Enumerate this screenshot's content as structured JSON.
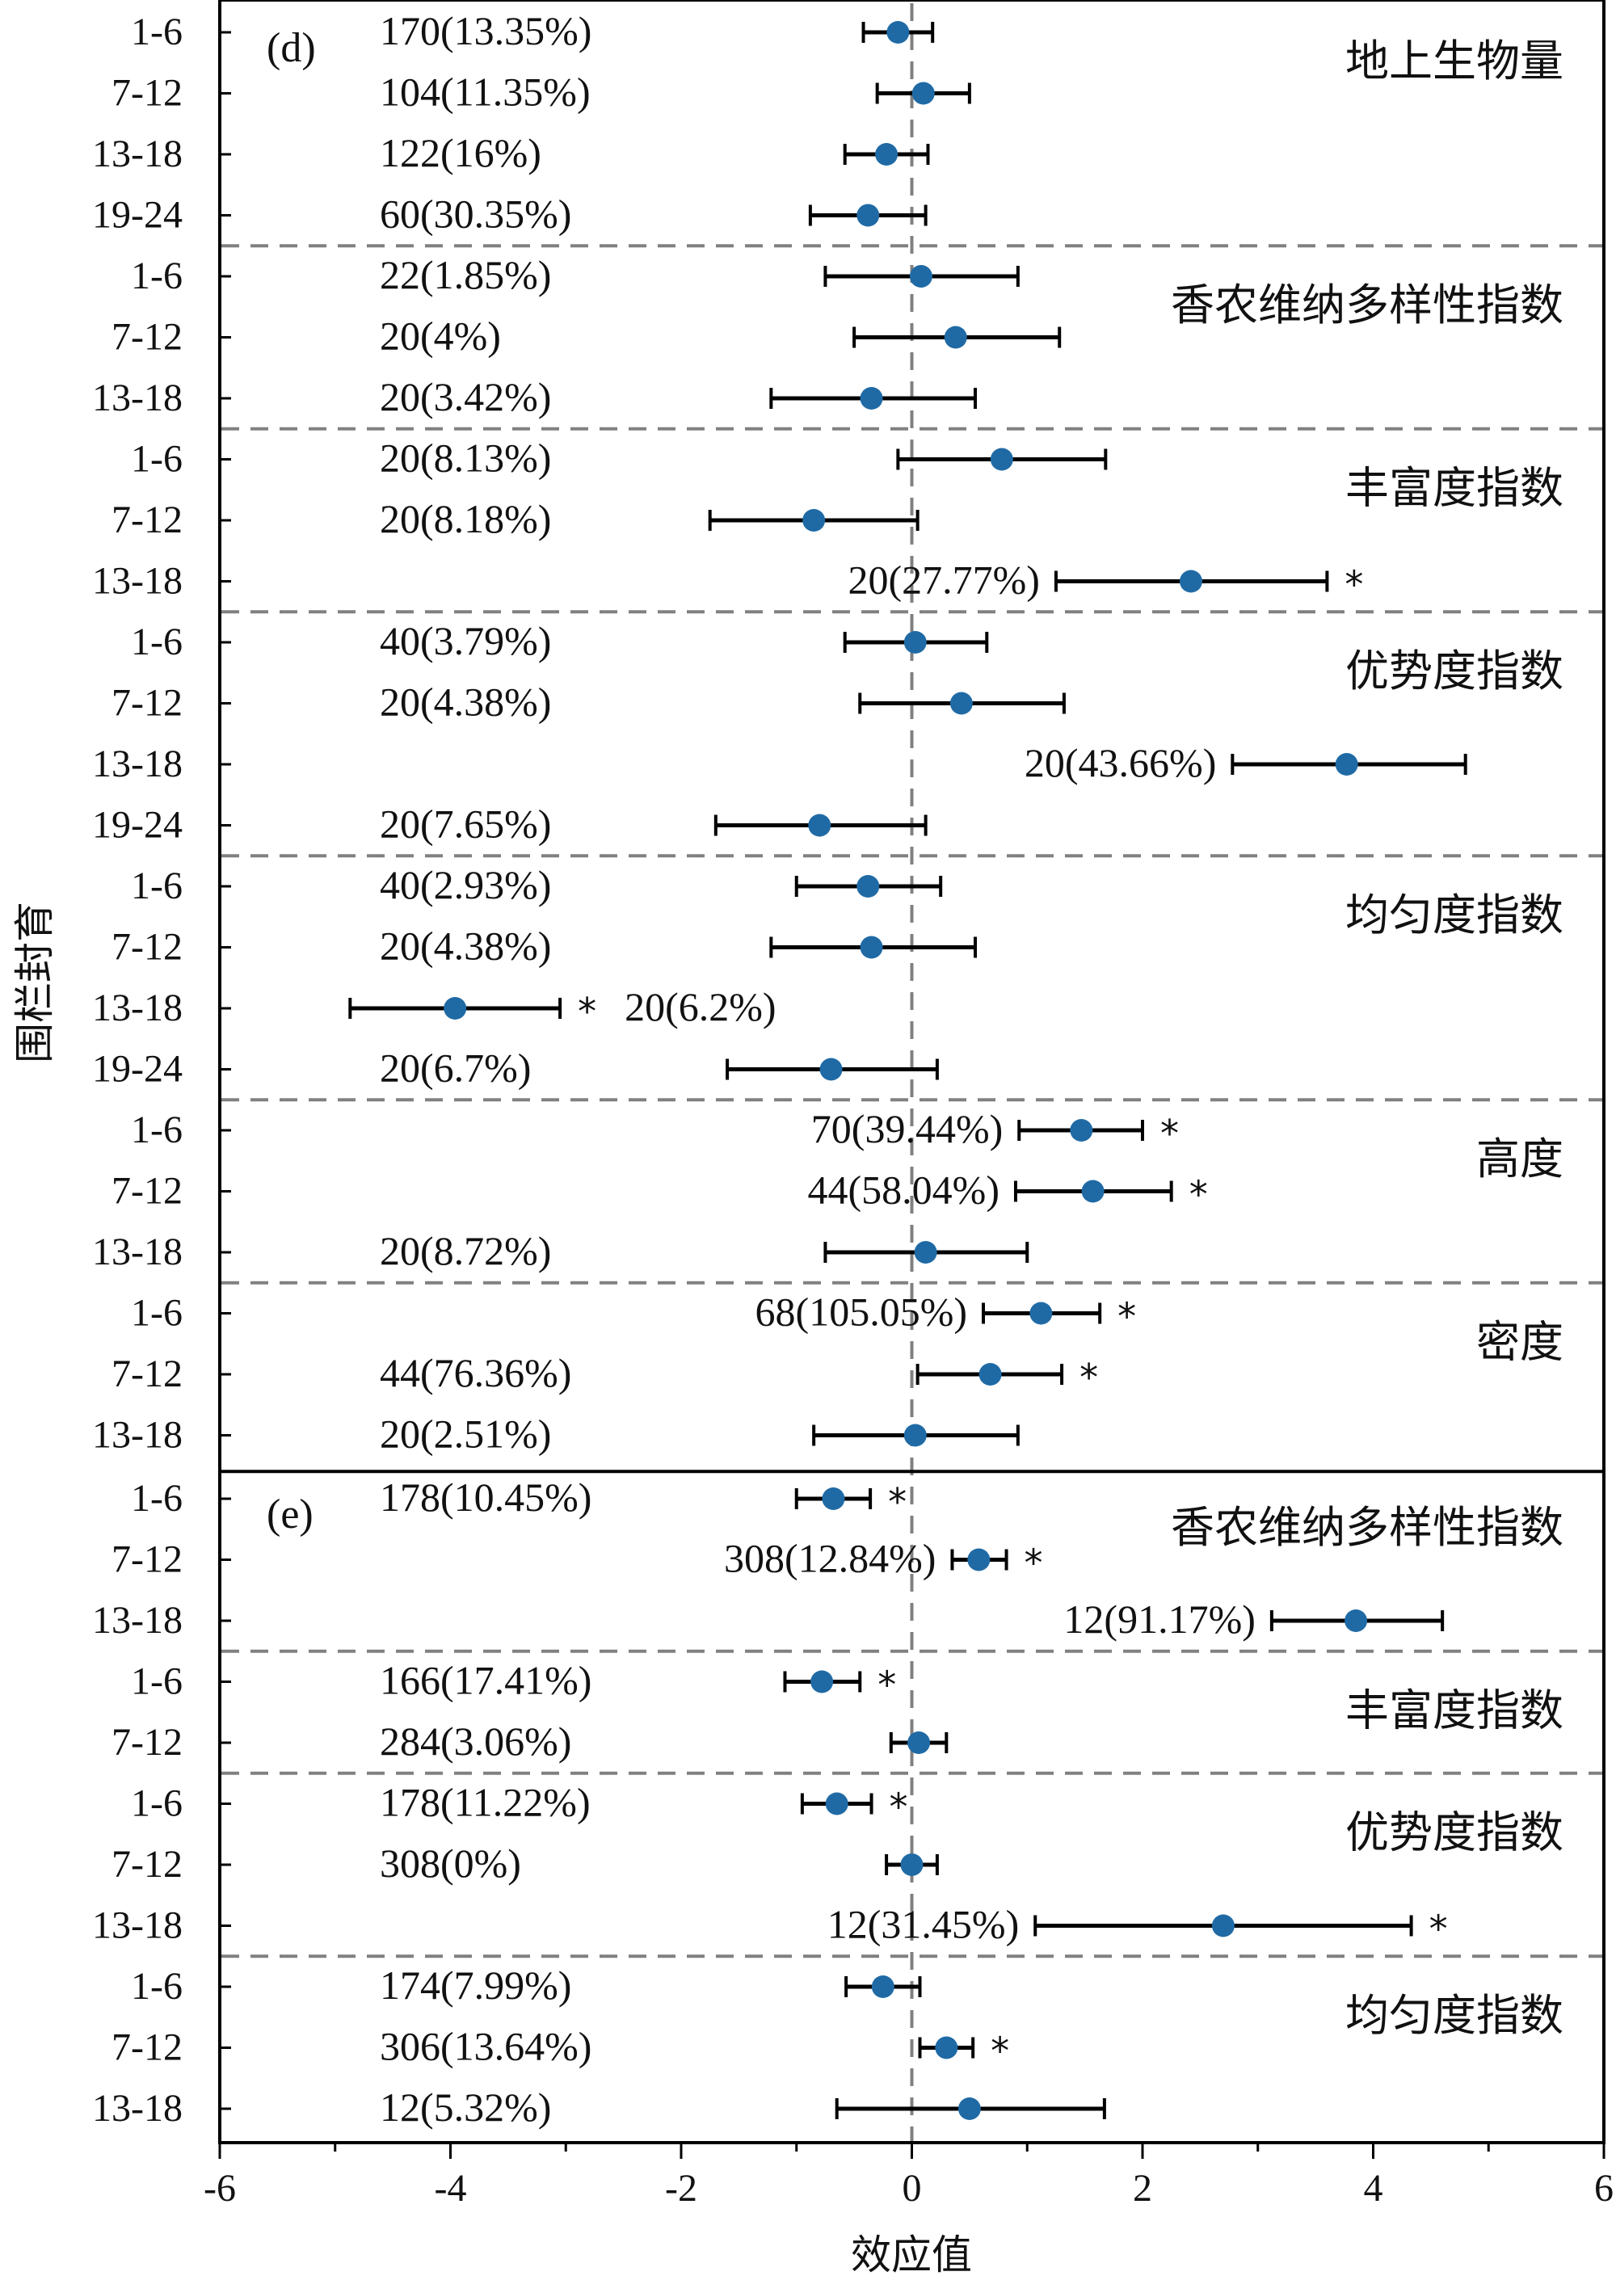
{
  "chart_data": {
    "type": "forest",
    "xlabel": "效应值",
    "ylabel": "围栏封育",
    "xlim": [
      -6,
      6
    ],
    "xticks": [
      -6,
      -4,
      -2,
      0,
      2,
      4,
      6
    ],
    "reference_line": 0,
    "point_color": "#1f6aa5",
    "significance_marker": "*",
    "panels": [
      {
        "label": "(d)",
        "groups": [
          {
            "name": "地上生物量",
            "rows": [
              {
                "period": "1-6",
                "n": "170(13.35%)",
                "effect": -0.12,
                "ci": [
                  -0.42,
                  0.18
                ],
                "sig": false
              },
              {
                "period": "7-12",
                "n": "104(11.35%)",
                "effect": 0.1,
                "ci": [
                  -0.3,
                  0.5
                ],
                "sig": false
              },
              {
                "period": "13-18",
                "n": "122(16%)",
                "effect": -0.22,
                "ci": [
                  -0.58,
                  0.14
                ],
                "sig": false
              },
              {
                "period": "19-24",
                "n": "60(30.35%)",
                "effect": -0.38,
                "ci": [
                  -0.88,
                  0.12
                ],
                "sig": false
              }
            ]
          },
          {
            "name": "香农维纳多样性指数",
            "rows": [
              {
                "period": "1-6",
                "n": "22(1.85%)",
                "effect": 0.08,
                "ci": [
                  -0.75,
                  0.92
                ],
                "sig": false
              },
              {
                "period": "7-12",
                "n": "20(4%)",
                "effect": 0.38,
                "ci": [
                  -0.5,
                  1.28
                ],
                "sig": false
              },
              {
                "period": "13-18",
                "n": "20(3.42%)",
                "effect": -0.35,
                "ci": [
                  -1.22,
                  0.55
                ],
                "sig": false
              }
            ]
          },
          {
            "name": "丰富度指数",
            "rows": [
              {
                "period": "1-6",
                "n": "20(8.13%)",
                "effect": 0.78,
                "ci": [
                  -0.12,
                  1.68
                ],
                "sig": false
              },
              {
                "period": "7-12",
                "n": "20(8.18%)",
                "effect": -0.85,
                "ci": [
                  -1.75,
                  0.05
                ],
                "sig": false
              },
              {
                "period": "13-18",
                "n": "20(27.77%)",
                "effect": 2.42,
                "ci": [
                  1.25,
                  3.6
                ],
                "sig": true
              }
            ]
          },
          {
            "name": "优势度指数",
            "rows": [
              {
                "period": "1-6",
                "n": "40(3.79%)",
                "effect": 0.03,
                "ci": [
                  -0.58,
                  0.65
                ],
                "sig": false
              },
              {
                "period": "7-12",
                "n": "20(4.38%)",
                "effect": 0.43,
                "ci": [
                  -0.45,
                  1.32
                ],
                "sig": false
              },
              {
                "period": "13-18",
                "n": "20(43.66%)",
                "effect": 3.77,
                "ci": [
                  2.78,
                  4.8
                ],
                "sig": false
              },
              {
                "period": "19-24",
                "n": "20(7.65%)",
                "effect": -0.8,
                "ci": [
                  -1.7,
                  0.12
                ],
                "sig": false
              }
            ]
          },
          {
            "name": "均匀度指数",
            "rows": [
              {
                "period": "1-6",
                "n": "40(2.93%)",
                "effect": -0.38,
                "ci": [
                  -1.0,
                  0.25
                ],
                "sig": false
              },
              {
                "period": "7-12",
                "n": "20(4.38%)",
                "effect": -0.35,
                "ci": [
                  -1.22,
                  0.55
                ],
                "sig": false
              },
              {
                "period": "13-18",
                "n": "20(6.2%)",
                "effect": -3.96,
                "ci": [
                  -4.87,
                  -3.05
                ],
                "sig": true
              },
              {
                "period": "19-24",
                "n": "20(6.7%)",
                "effect": -0.7,
                "ci": [
                  -1.6,
                  0.22
                ],
                "sig": false
              }
            ]
          },
          {
            "name": "高度",
            "rows": [
              {
                "period": "1-6",
                "n": "70(39.44%)",
                "effect": 1.47,
                "ci": [
                  0.93,
                  2.0
                ],
                "sig": true
              },
              {
                "period": "7-12",
                "n": "44(58.04%)",
                "effect": 1.57,
                "ci": [
                  0.9,
                  2.25
                ],
                "sig": true
              },
              {
                "period": "13-18",
                "n": "20(8.72%)",
                "effect": 0.12,
                "ci": [
                  -0.75,
                  1.0
                ],
                "sig": false
              }
            ]
          },
          {
            "name": "密度",
            "rows": [
              {
                "period": "1-6",
                "n": "68(105.05%)",
                "effect": 1.12,
                "ci": [
                  0.62,
                  1.63
                ],
                "sig": true
              },
              {
                "period": "7-12",
                "n": "44(76.36%)",
                "effect": 0.68,
                "ci": [
                  0.05,
                  1.3
                ],
                "sig": true
              },
              {
                "period": "13-18",
                "n": "20(2.51%)",
                "effect": 0.03,
                "ci": [
                  -0.85,
                  0.92
                ],
                "sig": false
              }
            ]
          }
        ]
      },
      {
        "label": "(e)",
        "groups": [
          {
            "name": "香农维纳多样性指数",
            "rows": [
              {
                "period": "1-6",
                "n": "178(10.45%)",
                "effect": -0.68,
                "ci": [
                  -1.0,
                  -0.36
                ],
                "sig": true
              },
              {
                "period": "7-12",
                "n": "308(12.84%)",
                "effect": 0.58,
                "ci": [
                  0.35,
                  0.82
                ],
                "sig": true
              },
              {
                "period": "13-18",
                "n": "12(91.17%)",
                "effect": 3.85,
                "ci": [
                  3.12,
                  4.6
                ],
                "sig": false
              }
            ]
          },
          {
            "name": "丰富度指数",
            "rows": [
              {
                "period": "1-6",
                "n": "166(17.41%)",
                "effect": -0.78,
                "ci": [
                  -1.1,
                  -0.45
                ],
                "sig": true
              },
              {
                "period": "7-12",
                "n": "284(3.06%)",
                "effect": 0.06,
                "ci": [
                  -0.18,
                  0.3
                ],
                "sig": false
              }
            ]
          },
          {
            "name": "优势度指数",
            "rows": [
              {
                "period": "1-6",
                "n": "178(11.22%)",
                "effect": -0.65,
                "ci": [
                  -0.95,
                  -0.35
                ],
                "sig": true
              },
              {
                "period": "7-12",
                "n": "308(0%)",
                "effect": 0.0,
                "ci": [
                  -0.22,
                  0.22
                ],
                "sig": false
              },
              {
                "period": "13-18",
                "n": "12(31.45%)",
                "effect": 2.7,
                "ci": [
                  1.07,
                  4.33
                ],
                "sig": true
              }
            ]
          },
          {
            "name": "均匀度指数",
            "rows": [
              {
                "period": "1-6",
                "n": "174(7.99%)",
                "effect": -0.25,
                "ci": [
                  -0.57,
                  0.07
                ],
                "sig": false
              },
              {
                "period": "7-12",
                "n": "306(13.64%)",
                "effect": 0.3,
                "ci": [
                  0.07,
                  0.53
                ],
                "sig": true
              },
              {
                "period": "13-18",
                "n": "12(5.32%)",
                "effect": 0.5,
                "ci": [
                  -0.65,
                  1.67
                ],
                "sig": false
              }
            ]
          }
        ]
      }
    ]
  }
}
